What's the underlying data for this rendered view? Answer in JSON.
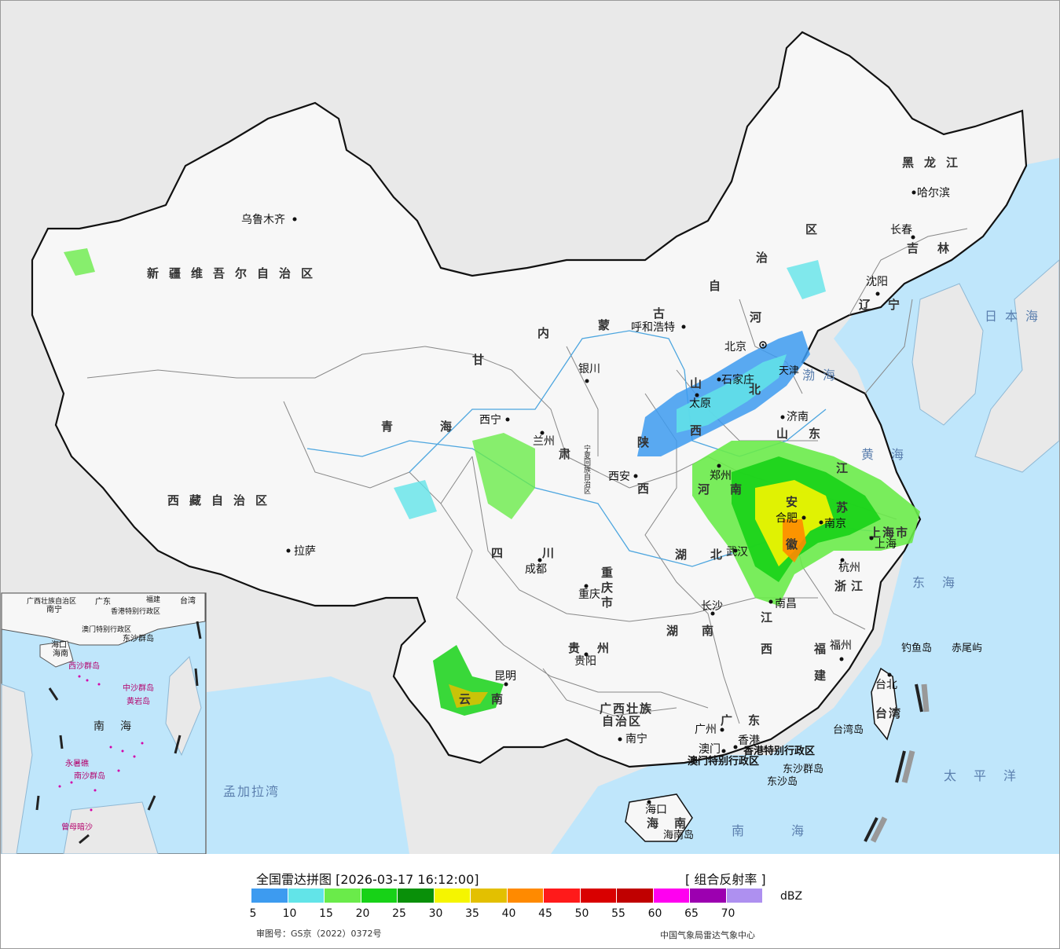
{
  "map": {
    "provinces": {
      "xinjiang": "新疆维吾尔自治区",
      "xizang": "西藏自治区",
      "qinghai": "青海",
      "gansu": "甘",
      "gansu2": "肃",
      "neimenggu": [
        "内",
        "蒙",
        "古",
        "自",
        "治",
        "区"
      ],
      "heilongjiang": "黑龙江",
      "jilin": "吉林",
      "liaoning": "辽宁",
      "hebei": [
        "河",
        "北"
      ],
      "shanxi": [
        "山",
        "西"
      ],
      "shaanxi": [
        "陕",
        "西"
      ],
      "shandong": "山东",
      "henan": "河南",
      "jiangsu": [
        "江",
        "苏"
      ],
      "anhui": [
        "安",
        "徽"
      ],
      "sichuan": "四川",
      "chongqing": "重庆市",
      "hubei": "湖北",
      "hunan": "湖南",
      "jiangxi": [
        "江",
        "西"
      ],
      "zhejiang": "浙江",
      "fujian": [
        "福",
        "建"
      ],
      "guizhou": "贵州",
      "yunnan": "云南",
      "guangxi": "广西壮族",
      "guangxi2": "自治区",
      "guangdong": "广东",
      "hainan": "海南",
      "taiwan": "台湾",
      "ningxia": "宁夏回族自治区",
      "shanghai": "上海市",
      "tianjin": "天津"
    },
    "cities": {
      "urumqi": "乌鲁木齐",
      "lhasa": "拉萨",
      "xining": "西宁",
      "lanzhou": "兰州",
      "yinchuan": "银川",
      "hohhot": "呼和浩特",
      "beijing": "北京",
      "shijiazhuang": "石家庄",
      "taiyuan": "太原",
      "jinan": "济南",
      "zhengzhou": "郑州",
      "xian": "西安",
      "hefei": "合肥",
      "nanjing": "南京",
      "shanghai": "上海",
      "hangzhou": "杭州",
      "wuhan": "武汉",
      "chengdu": "成都",
      "chongqing": "重庆",
      "changsha": "长沙",
      "nanchang": "南昌",
      "fuzhou": "福州",
      "guiyang": "贵阳",
      "kunming": "昆明",
      "nanning": "南宁",
      "guangzhou": "广州",
      "haikou": "海口",
      "taipei": "台北",
      "harbin": "哈尔滨",
      "changchun": "长春",
      "shenyang": "沈阳",
      "hongkong": "香港",
      "macau": "澳门",
      "hainan_island": "海南岛",
      "taiwan_island": "台湾岛",
      "hk_sar": "香港特别行政区",
      "macau_sar": "澳门特别行政区",
      "dongsha_islands": "东沙群岛",
      "dongsha_island": "东沙岛",
      "diaoyu": "钓鱼岛",
      "chiwei": "赤尾屿"
    },
    "seas": {
      "japan_sea": "日本海",
      "bohai": "渤海",
      "yellow_sea": "黄海",
      "east_sea": "东海",
      "south_sea": "南海",
      "pacific": "太平洋",
      "bengal": "孟加拉湾"
    },
    "inset": {
      "guangxi": "广西壮族自治区",
      "nanning": "南宁",
      "guangdong": "广东",
      "hk": "香港特别行政区",
      "macau": "澳门特别行政区",
      "dongsha": "东沙群岛",
      "haikou": "海口",
      "hainan": "海南",
      "xisha": "西沙群岛",
      "zhongsha": "中沙群岛",
      "huangyan": "黄岩岛",
      "south_sea": "南海",
      "nansha": "南沙群岛",
      "zengmu": "曾母暗沙",
      "yongshu": "永暑礁",
      "taiwan": "台湾",
      "fujian": "福建"
    }
  },
  "legend": {
    "title": "全国雷达拼图 [2026-03-17 16:12:00]",
    "product": "[ 组合反射率 ]",
    "unit": "dBZ",
    "colors": [
      "#3d9bf0",
      "#62e4e8",
      "#6aeb4a",
      "#17d217",
      "#099009",
      "#f5f500",
      "#e3c000",
      "#ff8a00",
      "#ff1a1a",
      "#d90000",
      "#c00000",
      "#ff00f0",
      "#9c00b0",
      "#ae90f0"
    ],
    "ticks": [
      "5",
      "10",
      "15",
      "20",
      "25",
      "30",
      "35",
      "40",
      "45",
      "50",
      "55",
      "60",
      "65",
      "70"
    ],
    "approval": "审图号：GS京（2022）0372号",
    "agency": "中国气象局雷达气象中心"
  }
}
